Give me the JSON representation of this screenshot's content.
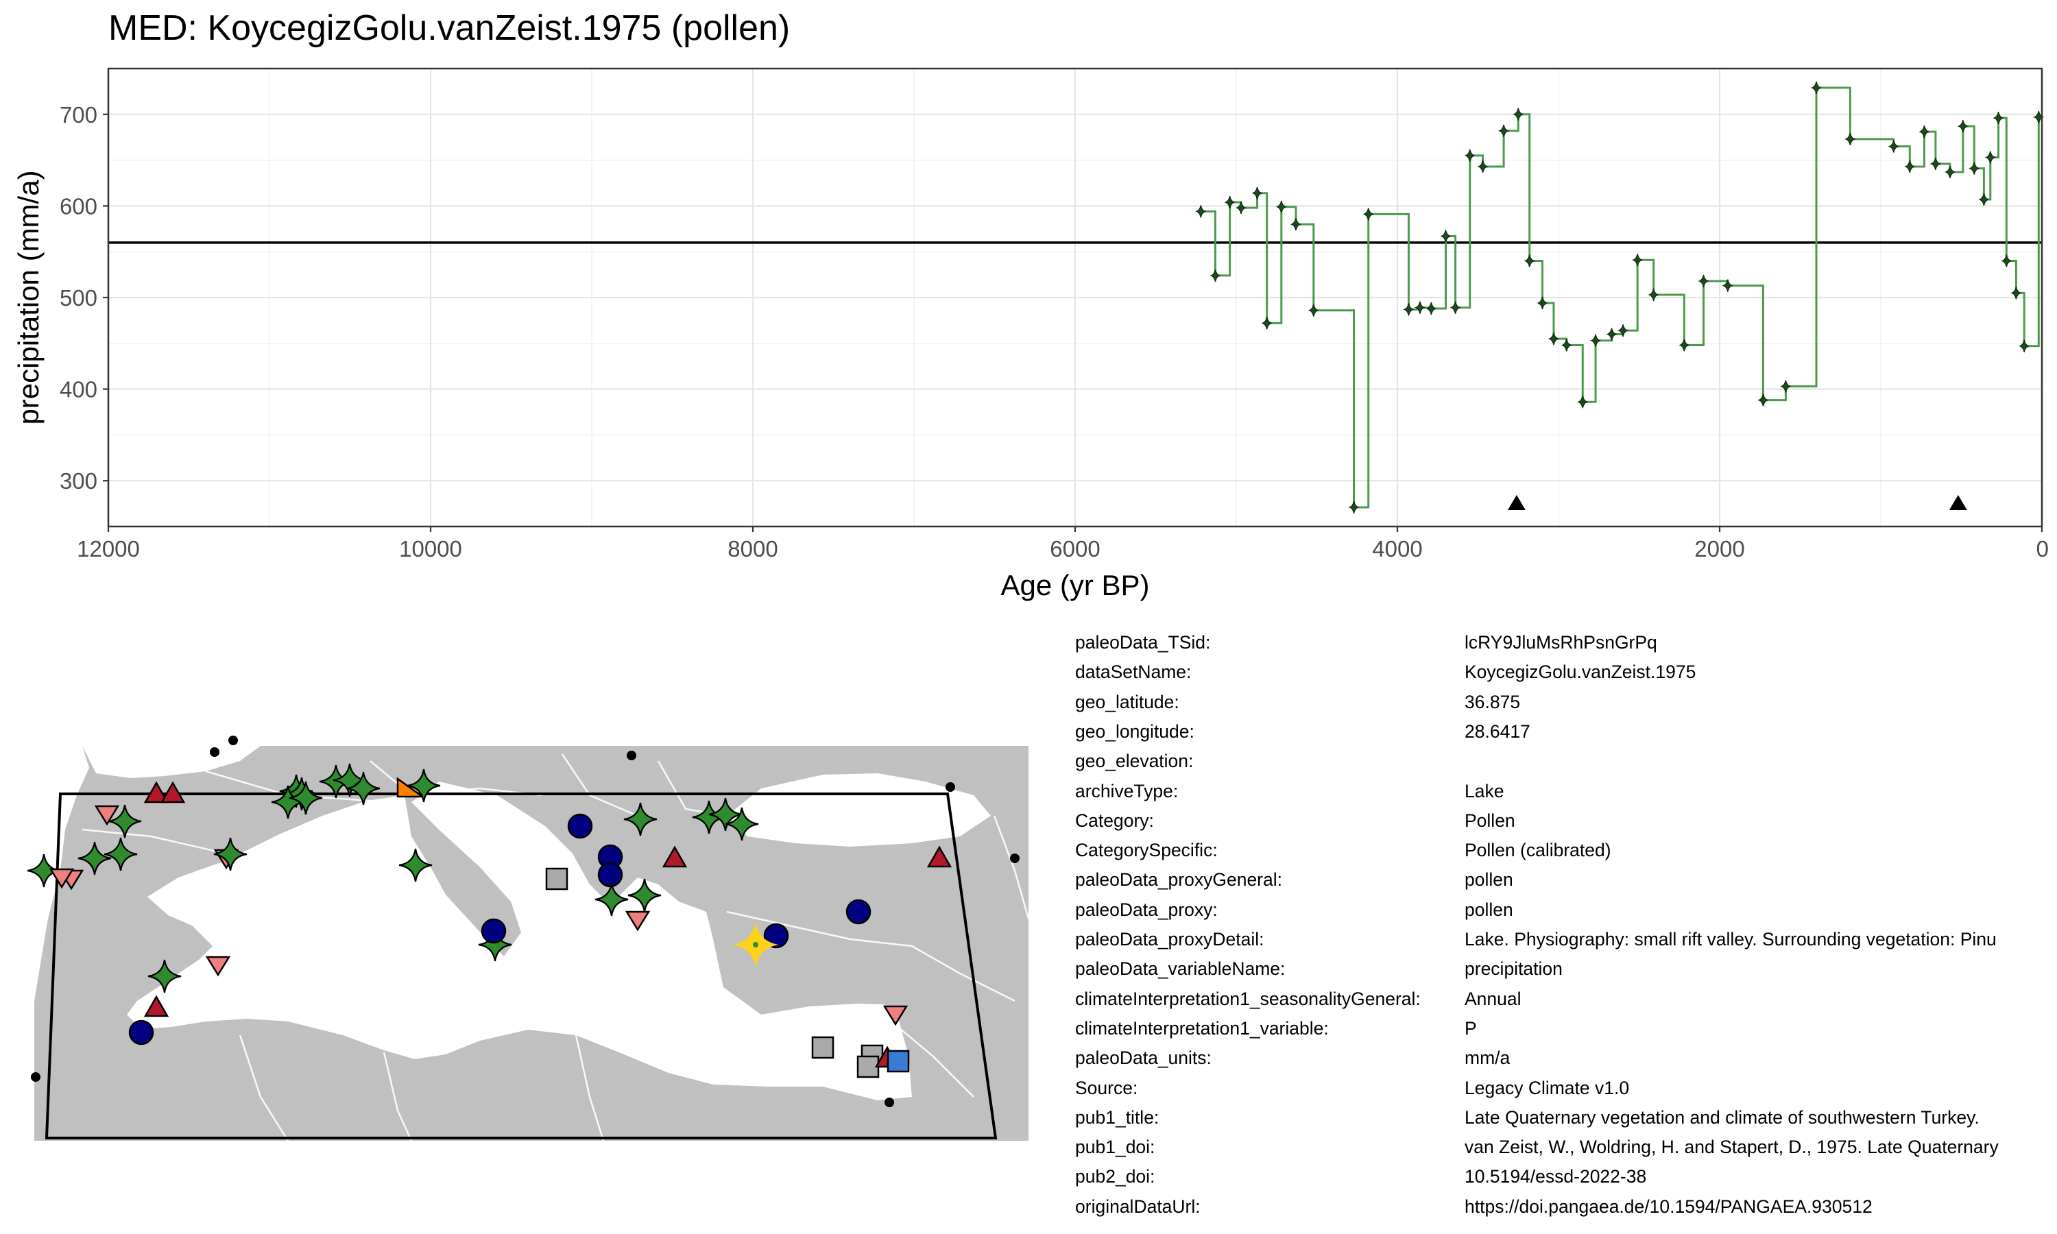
{
  "chart_data": {
    "type": "line",
    "title": "MED: KoycegizGolu.vanZeist.1975 (pollen)",
    "xlabel": "Age (yr BP)",
    "ylabel": "precipitation (mm/a)",
    "xlim": [
      12000,
      0
    ],
    "xticks": [
      12000,
      10000,
      8000,
      6000,
      4000,
      2000,
      0
    ],
    "ylim": [
      250,
      750
    ],
    "yticks": [
      300,
      400,
      500,
      600,
      700
    ],
    "grid": true,
    "reference_line": 560,
    "markers_triangle_x": [
      3260,
      520
    ],
    "series": [
      {
        "color": "#4d9a4d",
        "x": [
          5220,
          5130,
          5040,
          4970,
          4870,
          4810,
          4720,
          4630,
          4520,
          4270,
          4180,
          3930,
          3860,
          3790,
          3700,
          3640,
          3550,
          3470,
          3340,
          3250,
          3180,
          3100,
          3030,
          2950,
          2850,
          2770,
          2670,
          2600,
          2510,
          2410,
          2220,
          2100,
          1950,
          1730,
          1590,
          1400,
          1190,
          920,
          820,
          730,
          660,
          570,
          490,
          420,
          360,
          320,
          270,
          220,
          160,
          110,
          20
        ],
        "y": [
          594,
          524,
          604,
          598,
          614,
          472,
          599,
          580,
          486,
          271,
          591,
          487,
          489,
          488,
          567,
          489,
          655,
          643,
          682,
          700,
          540,
          494,
          455,
          448,
          386,
          453,
          460,
          464,
          541,
          503,
          448,
          518,
          513,
          388,
          403,
          729,
          673,
          665,
          643,
          681,
          646,
          637,
          687,
          641,
          607,
          653,
          696,
          540,
          505,
          447,
          697
        ]
      }
    ]
  },
  "map": {
    "site_symbols": [
      {
        "shape": "triangle-up",
        "color": "#b2182b"
      },
      {
        "shape": "triangle-down",
        "color": "#f08080"
      },
      {
        "shape": "star4",
        "color": "#2e8b2e"
      },
      {
        "shape": "circle",
        "color": "#000080"
      },
      {
        "shape": "square",
        "color": "#aaaaaa"
      },
      {
        "shape": "triangle-left",
        "color": "#ff7f00"
      },
      {
        "shape": "square",
        "color": "#3a7bd5"
      },
      {
        "shape": "star4-highlight",
        "color": "#ffd21a"
      }
    ],
    "land_color": "#c0c0c0",
    "sea_color": "#ffffff"
  },
  "metadata": [
    {
      "key": "paleoData_TSid:",
      "value": "lcRY9JluMsRhPsnGrPq"
    },
    {
      "key": "dataSetName:",
      "value": "KoycegizGolu.vanZeist.1975"
    },
    {
      "key": "geo_latitude:",
      "value": "36.875"
    },
    {
      "key": "geo_longitude:",
      "value": "28.6417"
    },
    {
      "key": "geo_elevation:",
      "value": ""
    },
    {
      "key": "archiveType:",
      "value": "Lake"
    },
    {
      "key": "Category:",
      "value": "Pollen"
    },
    {
      "key": "CategorySpecific:",
      "value": "Pollen (calibrated)"
    },
    {
      "key": "paleoData_proxyGeneral:",
      "value": "pollen"
    },
    {
      "key": "paleoData_proxy:",
      "value": "pollen"
    },
    {
      "key": "paleoData_proxyDetail:",
      "value": "Lake. Physiography: small rift valley. Surrounding vegetation: Pinu"
    },
    {
      "key": "paleoData_variableName:",
      "value": "precipitation"
    },
    {
      "key": "climateInterpretation1_seasonalityGeneral:",
      "value": "Annual"
    },
    {
      "key": "climateInterpretation1_variable:",
      "value": "P"
    },
    {
      "key": "paleoData_units:",
      "value": "mm/a"
    },
    {
      "key": "Source:",
      "value": "Legacy Climate v1.0"
    },
    {
      "key": "pub1_title:",
      "value": "Late Quaternary vegetation and climate of southwestern Turkey."
    },
    {
      "key": "pub1_doi:",
      "value": "van Zeist, W., Woldring, H. and Stapert, D., 1975. Late Quaternary"
    },
    {
      "key": "pub2_doi:",
      "value": "10.5194/essd-2022-38"
    },
    {
      "key": "originalDataUrl:",
      "value": "https://doi.pangaea.de/10.1594/PANGAEA.930512"
    }
  ]
}
